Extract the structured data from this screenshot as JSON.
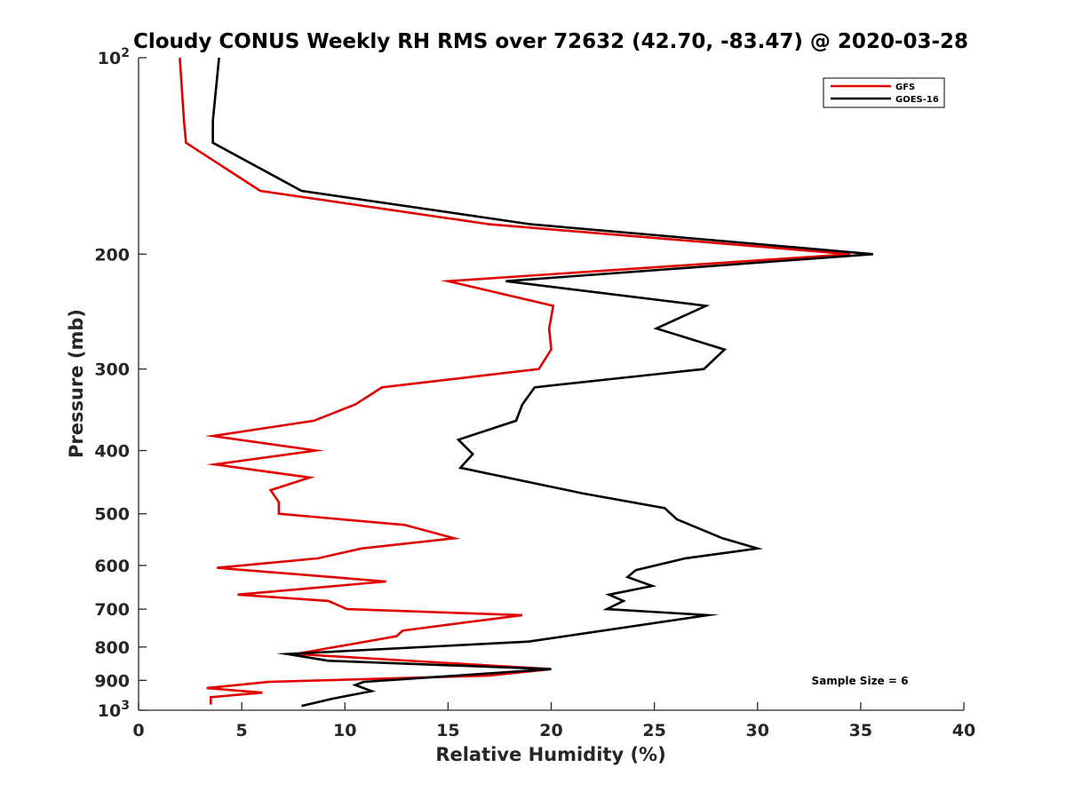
{
  "chart_data": {
    "type": "line",
    "title": "Cloudy CONUS Weekly RH RMS over 72632 (42.70, -83.47) @ 2020-03-28",
    "xlabel": "Relative Humidity (%)",
    "ylabel": "Pressure (mb)",
    "xlim": [
      0,
      40
    ],
    "ylim": [
      100,
      1000
    ],
    "y_scale": "log",
    "y_reversed": true,
    "x_ticks": [
      0,
      5,
      10,
      15,
      20,
      25,
      30,
      35,
      40
    ],
    "y_ticks": [
      {
        "value": 100,
        "label": "10",
        "sup": "2"
      },
      {
        "value": 200,
        "label": "200"
      },
      {
        "value": 300,
        "label": "300"
      },
      {
        "value": 400,
        "label": "400"
      },
      {
        "value": 500,
        "label": "500"
      },
      {
        "value": 600,
        "label": "600"
      },
      {
        "value": 700,
        "label": "700"
      },
      {
        "value": 800,
        "label": "800"
      },
      {
        "value": 900,
        "label": "900"
      },
      {
        "value": 1000,
        "label": "10",
        "sup": "3"
      }
    ],
    "grid": false,
    "legend_position": "top-right",
    "annotation": "Sample Size = 6",
    "series": [
      {
        "name": "GFS",
        "color": "#e00000",
        "points": [
          [
            2.0,
            100
          ],
          [
            2.2,
            125
          ],
          [
            2.3,
            135
          ],
          [
            5.9,
            160
          ],
          [
            17.0,
            180
          ],
          [
            34.5,
            200
          ],
          [
            15.0,
            220
          ],
          [
            20.1,
            240
          ],
          [
            19.9,
            260
          ],
          [
            20.0,
            280
          ],
          [
            19.4,
            300
          ],
          [
            11.8,
            320
          ],
          [
            10.5,
            340
          ],
          [
            8.5,
            360
          ],
          [
            3.6,
            380
          ],
          [
            8.6,
            400
          ],
          [
            3.7,
            420
          ],
          [
            8.3,
            440
          ],
          [
            6.4,
            460
          ],
          [
            6.8,
            480
          ],
          [
            6.8,
            500
          ],
          [
            12.9,
            520
          ],
          [
            15.3,
            545
          ],
          [
            10.8,
            565
          ],
          [
            8.7,
            585
          ],
          [
            3.8,
            605
          ],
          [
            12.0,
            635
          ],
          [
            4.8,
            665
          ],
          [
            9.2,
            680
          ],
          [
            10.1,
            700
          ],
          [
            18.6,
            715
          ],
          [
            12.8,
            755
          ],
          [
            12.5,
            770
          ],
          [
            7.6,
            820
          ],
          [
            20.0,
            865
          ],
          [
            17.0,
            885
          ],
          [
            6.3,
            905
          ],
          [
            3.3,
            925
          ],
          [
            6.0,
            940
          ],
          [
            3.5,
            955
          ],
          [
            3.5,
            980
          ]
        ]
      },
      {
        "name": "GOES-16",
        "color": "#000000",
        "points": [
          [
            3.9,
            100
          ],
          [
            3.6,
            125
          ],
          [
            3.6,
            135
          ],
          [
            7.9,
            160
          ],
          [
            19.0,
            180
          ],
          [
            35.6,
            200
          ],
          [
            17.8,
            220
          ],
          [
            27.5,
            240
          ],
          [
            25.1,
            260
          ],
          [
            28.4,
            280
          ],
          [
            27.4,
            300
          ],
          [
            19.2,
            320
          ],
          [
            18.6,
            340
          ],
          [
            18.3,
            360
          ],
          [
            15.5,
            385
          ],
          [
            16.2,
            405
          ],
          [
            15.6,
            425
          ],
          [
            21.5,
            465
          ],
          [
            25.5,
            490
          ],
          [
            26.1,
            510
          ],
          [
            28.3,
            545
          ],
          [
            30.0,
            565
          ],
          [
            26.5,
            585
          ],
          [
            24.1,
            610
          ],
          [
            23.7,
            625
          ],
          [
            24.9,
            645
          ],
          [
            22.8,
            665
          ],
          [
            23.5,
            680
          ],
          [
            22.7,
            700
          ],
          [
            27.6,
            715
          ],
          [
            18.9,
            785
          ],
          [
            7.2,
            820
          ],
          [
            9.2,
            840
          ],
          [
            20.0,
            865
          ],
          [
            10.9,
            905
          ],
          [
            10.5,
            915
          ],
          [
            11.3,
            935
          ],
          [
            9.4,
            960
          ],
          [
            7.9,
            985
          ]
        ]
      }
    ]
  }
}
